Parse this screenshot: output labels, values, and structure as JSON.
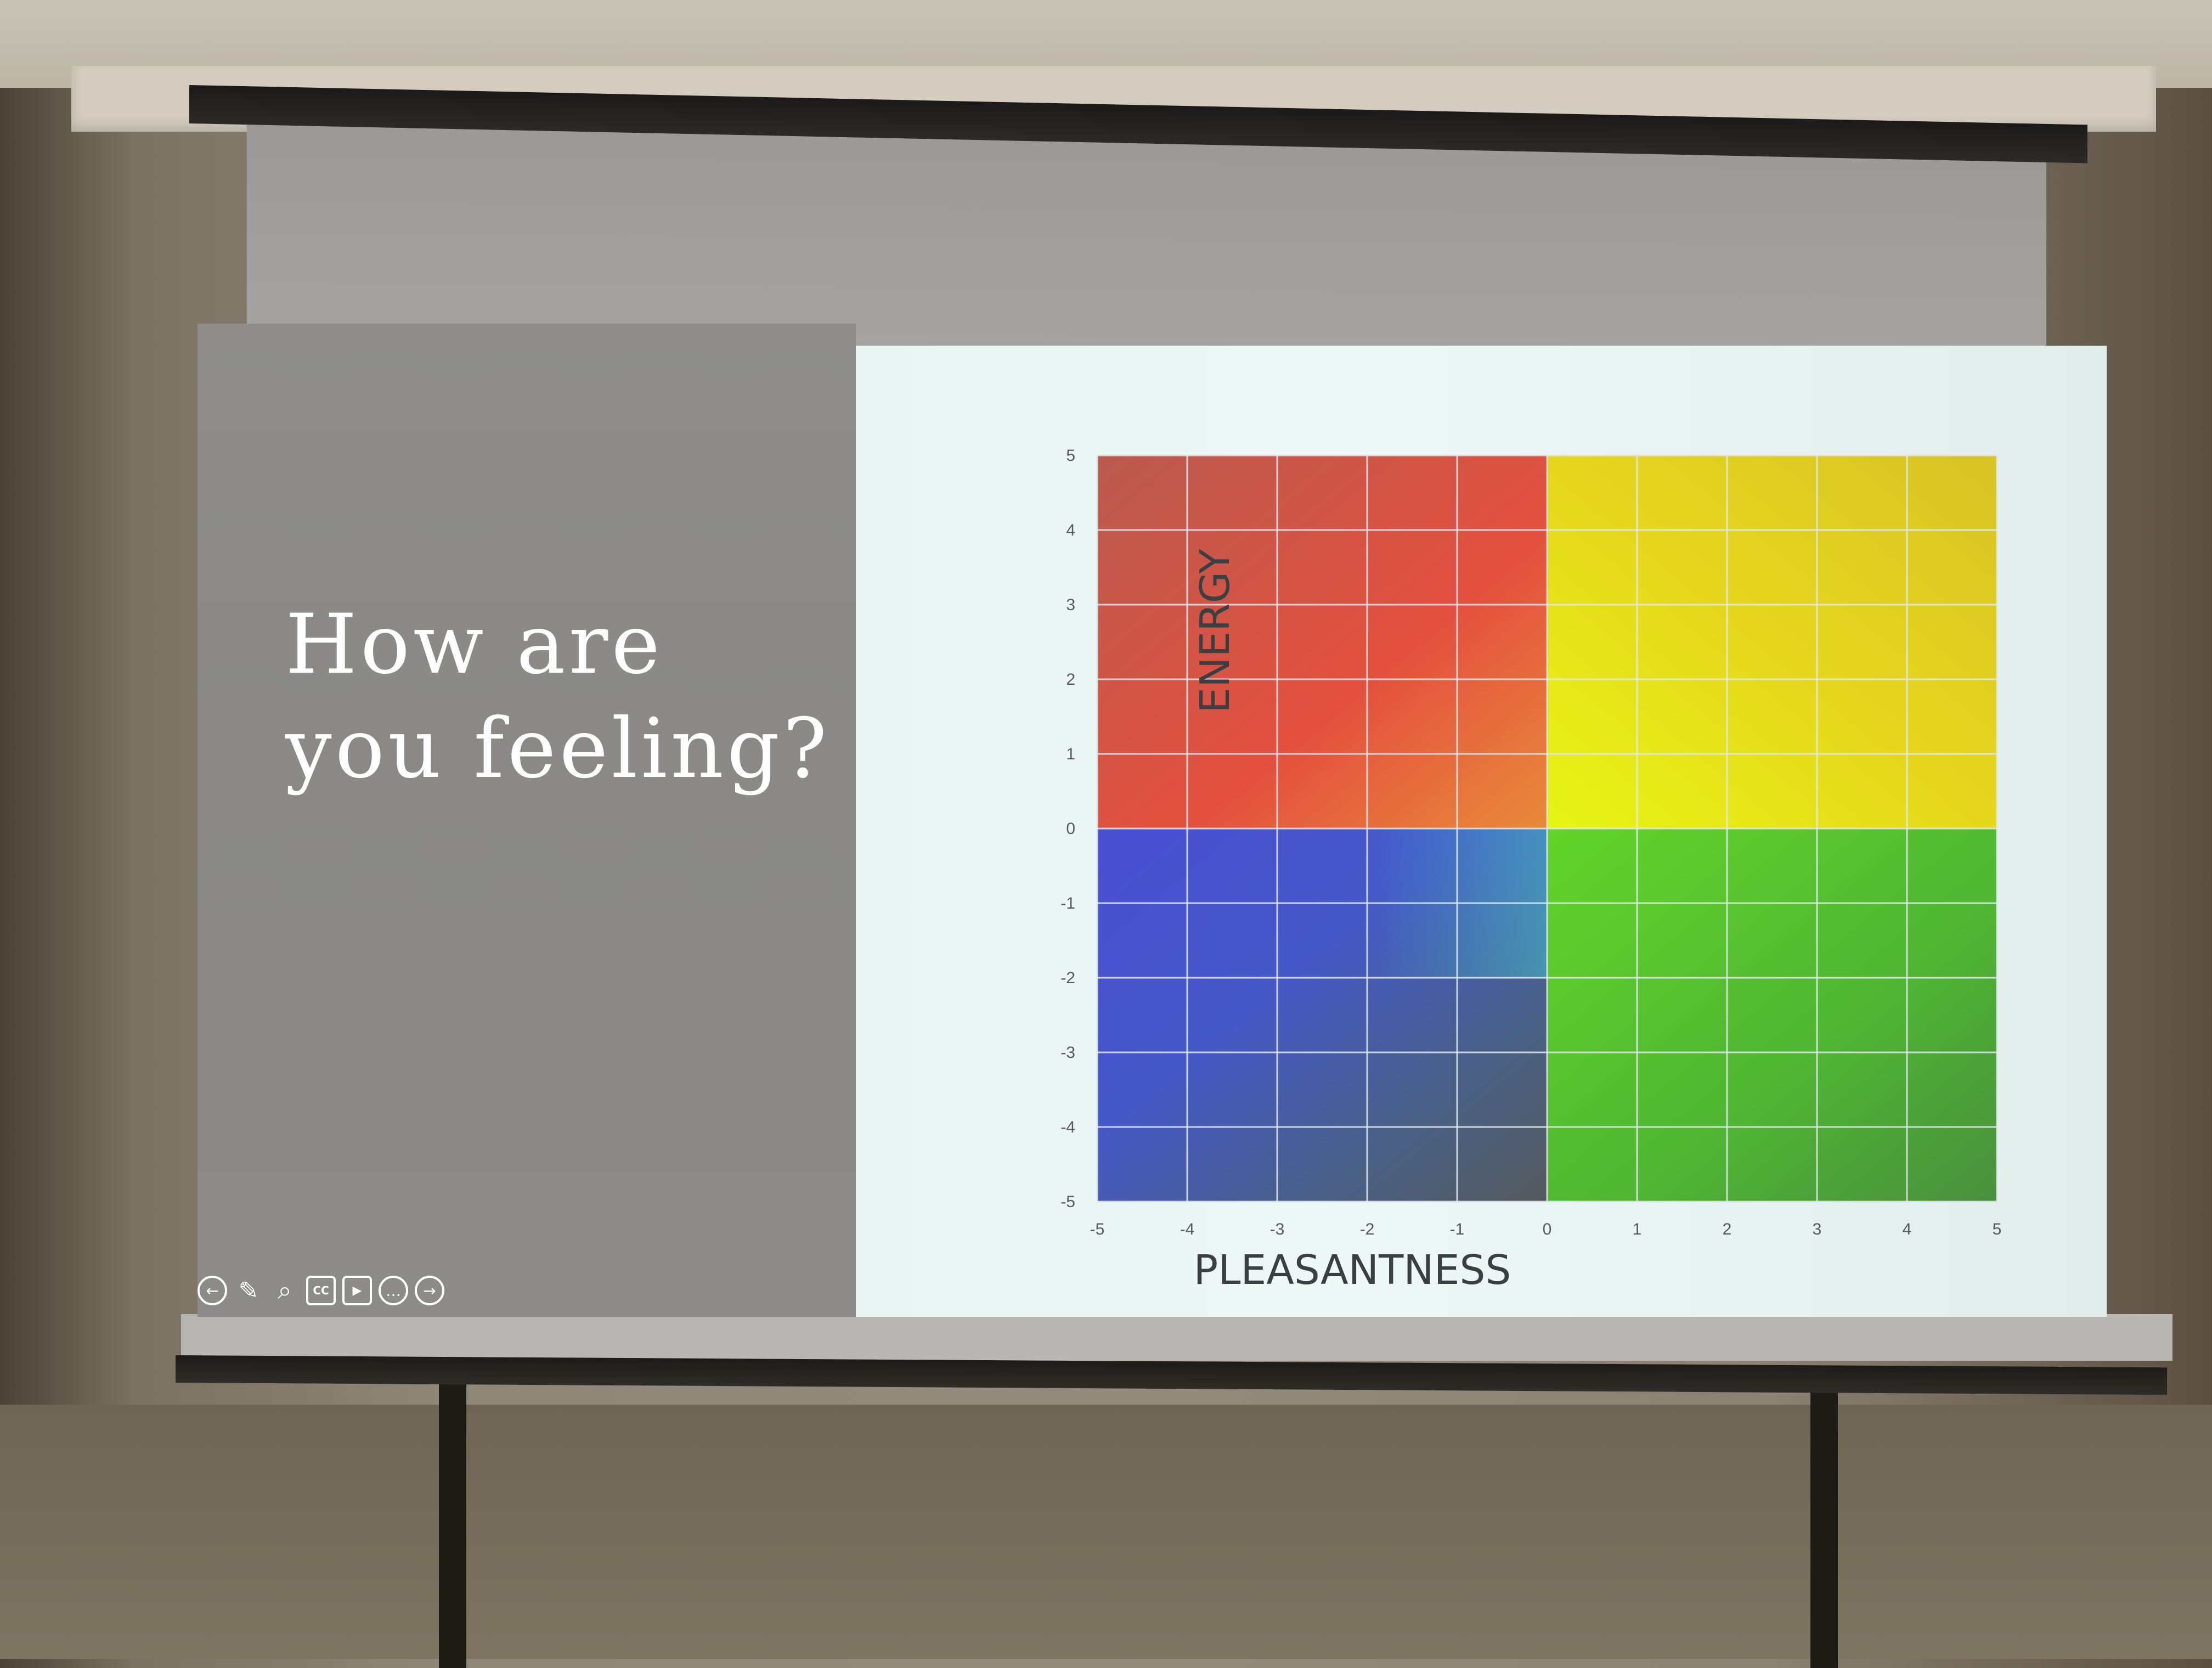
{
  "slide": {
    "title_line1": "How are",
    "title_line2": "you feeling?"
  },
  "toolbar": {
    "items": [
      {
        "name": "previous-slide",
        "icon": "arrow-left-circle-icon",
        "glyph": "←"
      },
      {
        "name": "pen",
        "icon": "pencil-icon",
        "glyph": "✎"
      },
      {
        "name": "zoom",
        "icon": "magnifier-icon",
        "glyph": "⌕"
      },
      {
        "name": "captions",
        "icon": "cc-icon",
        "glyph": "CC"
      },
      {
        "name": "camera",
        "icon": "video-camera-icon",
        "glyph": "▶"
      },
      {
        "name": "more",
        "icon": "ellipsis-circle-icon",
        "glyph": "…"
      },
      {
        "name": "next-slide",
        "icon": "arrow-right-circle-icon",
        "glyph": "→"
      }
    ]
  },
  "chart_data": {
    "type": "heatmap",
    "title": "",
    "xlabel": "PLEASANTNESS",
    "ylabel": "ENERGY",
    "xlim": [
      -5,
      5
    ],
    "ylim": [
      -5,
      5
    ],
    "x_ticks": [
      "-5",
      "-4",
      "-3",
      "-2",
      "-1",
      "0",
      "1",
      "2",
      "3",
      "4",
      "5"
    ],
    "y_ticks": [
      "5",
      "4",
      "3",
      "2",
      "1",
      "0",
      "-1",
      "-2",
      "-3",
      "-4",
      "-5"
    ],
    "grid": true,
    "quadrants": [
      {
        "x": [
          -5,
          0
        ],
        "y": [
          0,
          5
        ],
        "color": "#d9473d"
      },
      {
        "x": [
          0,
          5
        ],
        "y": [
          0,
          5
        ],
        "color": "#e3d51c"
      },
      {
        "x": [
          -5,
          0
        ],
        "y": [
          -5,
          0
        ],
        "color": "#3e4fb8"
      },
      {
        "x": [
          0,
          5
        ],
        "y": [
          -5,
          0
        ],
        "color": "#5fbb3a"
      }
    ]
  }
}
